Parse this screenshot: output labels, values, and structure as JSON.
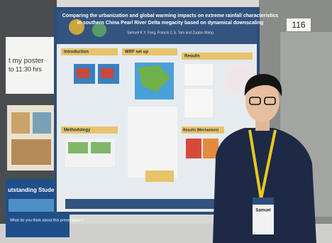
{
  "photo": {
    "board_number": "116",
    "left_sign": {
      "line1": "t my poster",
      "line2": "to 11:30 hrs"
    },
    "award_banner": {
      "title": "utstanding Student Paper Awards",
      "question": "What do you think about this presentation?"
    },
    "poster": {
      "title_line1": "Comparing the urbanization and global warming impacts on extreme rainfall characteristics",
      "title_line2": "in southern China Pearl River Delta megacity based on dynamical downscaling",
      "authors": "Samuel K.Y. Fong, Francis C.S. Tam and Zuqian Wang",
      "sections": [
        "Introduction",
        "WRF set up",
        "Results",
        "Methodology",
        "Results (Mechanism)"
      ]
    },
    "badge": "Samuel"
  }
}
